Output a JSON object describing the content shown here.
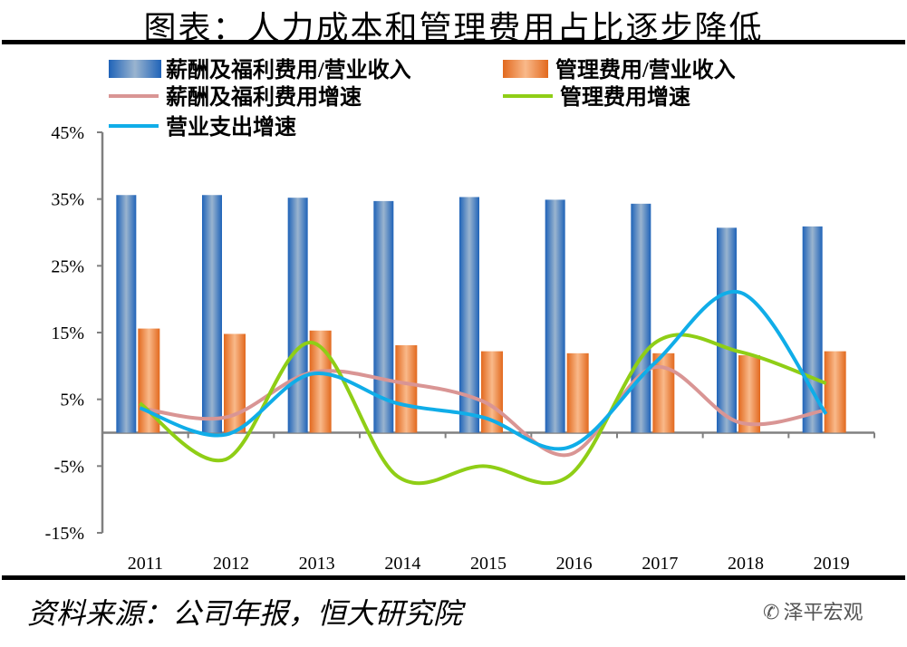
{
  "title": "图表：人力成本和管理费用占比逐步降低",
  "source": "资料来源：公司年报，恒大研究院",
  "watermark": "泽平宏观",
  "chart_data": {
    "type": "bar+line",
    "title": "图表：人力成本和管理费用占比逐步降低",
    "categories": [
      "2011",
      "2012",
      "2013",
      "2014",
      "2015",
      "2016",
      "2017",
      "2018",
      "2019"
    ],
    "ylim": [
      -15,
      45
    ],
    "yticks": [
      "45%",
      "35%",
      "25%",
      "15%",
      "5%",
      "-5%",
      "-15%"
    ],
    "ytick_values": [
      45,
      35,
      25,
      15,
      5,
      -5,
      -15
    ],
    "legend_placement": "top",
    "grid": false,
    "series": [
      {
        "name": "薪酬及福利费用/营业收入",
        "kind": "bar",
        "color": "#2f6fbf",
        "values": [
          35.6,
          35.6,
          35.2,
          34.7,
          35.3,
          34.9,
          34.3,
          30.7,
          30.9
        ]
      },
      {
        "name": "管理费用/营业收入",
        "kind": "bar",
        "color": "#f08030",
        "values": [
          15.6,
          14.8,
          15.3,
          13.1,
          12.2,
          11.9,
          11.9,
          11.6,
          12.2
        ]
      },
      {
        "name": "薪酬及福利费用增速",
        "kind": "line",
        "color": "#d99594",
        "values": [
          3.7,
          2.3,
          9.0,
          7.6,
          4.7,
          -3.3,
          9.8,
          1.5,
          3.4
        ]
      },
      {
        "name": "管理费用增速",
        "kind": "line",
        "color": "#8fce16",
        "values": [
          4.4,
          -4.0,
          13.5,
          -6.5,
          -5.0,
          -6.5,
          13.4,
          12.1,
          7.4
        ]
      },
      {
        "name": "营业支出增速",
        "kind": "line",
        "color": "#10ade8",
        "values": [
          3.7,
          -0.3,
          8.8,
          4.4,
          2.3,
          -2.2,
          10.4,
          21.0,
          2.8
        ]
      }
    ]
  }
}
